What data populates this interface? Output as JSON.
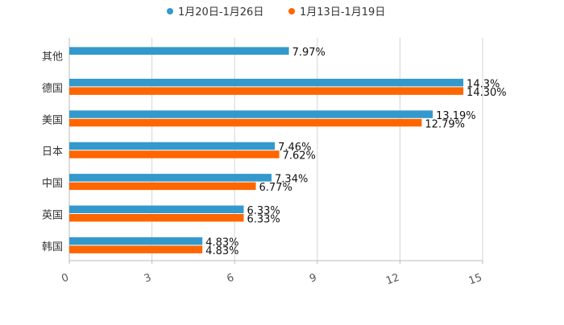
{
  "chart_data": {
    "type": "bar",
    "orientation": "horizontal",
    "title": "",
    "xlabel": "",
    "ylabel": "",
    "categories": [
      "其他",
      "德国",
      "美国",
      "日本",
      "中国",
      "英国",
      "韩国"
    ],
    "series": [
      {
        "name": "1月20日-1月26日",
        "color": "#3399cc",
        "values": [
          7.97,
          14.3,
          13.19,
          7.46,
          7.34,
          6.33,
          4.83
        ],
        "labels": [
          "7.97%",
          "14.3%",
          "13.19%",
          "7.46%",
          "7.34%",
          "6.33%",
          "4.83%"
        ]
      },
      {
        "name": "1月13日-1月19日",
        "color": "#ff6600",
        "values": [
          null,
          14.3,
          12.79,
          7.62,
          6.77,
          6.33,
          4.83
        ],
        "labels": [
          null,
          "14.30%",
          "12.79%",
          "7.62%",
          "6.77%",
          "6.33%",
          "4.83%"
        ]
      }
    ],
    "xlim": [
      0,
      15
    ],
    "xticks": [
      0,
      3,
      6,
      9,
      12,
      15
    ],
    "xtick_labels": [
      "0",
      "3",
      "6",
      "9",
      "12",
      "15"
    ],
    "grid": true,
    "legend_position": "top-center"
  }
}
